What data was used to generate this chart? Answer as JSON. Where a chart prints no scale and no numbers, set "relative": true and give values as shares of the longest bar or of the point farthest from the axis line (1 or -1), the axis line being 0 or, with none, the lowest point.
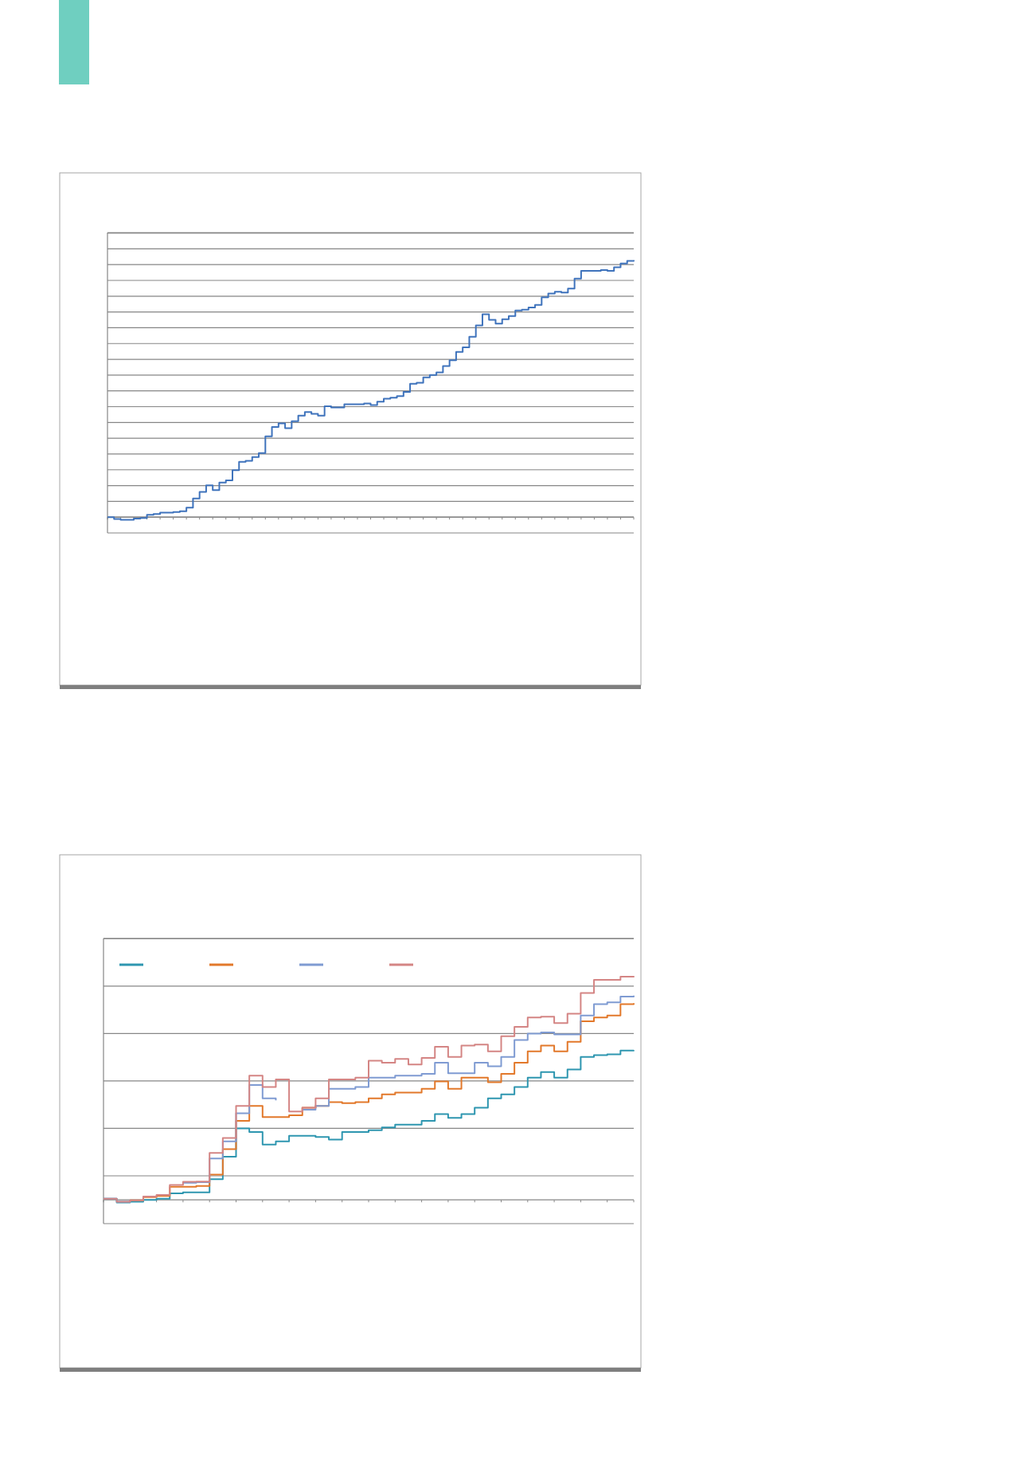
{
  "chart_data": [
    {
      "type": "step",
      "relative": true,
      "grid": true,
      "legend": false,
      "categories": [
        null,
        null,
        null,
        null,
        null,
        null,
        null,
        null,
        null,
        null,
        null,
        null,
        null,
        null,
        null,
        null,
        null,
        null,
        null,
        null,
        null,
        null,
        null,
        null,
        null,
        null,
        null,
        null,
        null,
        null,
        null,
        null,
        null,
        null,
        null,
        null,
        null,
        null,
        null,
        null,
        null,
        null,
        null,
        null,
        null,
        null,
        null,
        null,
        null,
        null,
        null,
        null,
        null,
        null,
        null,
        null,
        null,
        null,
        null,
        null,
        null,
        null,
        null,
        null,
        null,
        null,
        null,
        null,
        null,
        null,
        null,
        null,
        null,
        null,
        null,
        null,
        null,
        null,
        null,
        null,
        null
      ],
      "series": [
        {
          "color": "#3f73bc",
          "values": [
            0,
            -0.007,
            -0.01,
            -0.01,
            -0.006,
            -0.003,
            0.009,
            0.012,
            0.018,
            0.018,
            0.02,
            0.023,
            0.037,
            0.073,
            0.098,
            0.124,
            0.105,
            0.135,
            0.143,
            0.183,
            0.215,
            0.219,
            0.234,
            0.249,
            0.314,
            0.351,
            0.365,
            0.346,
            0.373,
            0.395,
            0.409,
            0.402,
            0.395,
            0.431,
            0.427,
            0.427,
            0.439,
            0.439,
            0.439,
            0.442,
            0.436,
            0.449,
            0.461,
            0.465,
            0.471,
            0.487,
            0.519,
            0.523,
            0.544,
            0.553,
            0.563,
            0.588,
            0.61,
            0.643,
            0.661,
            0.702,
            0.746,
            0.789,
            0.768,
            0.753,
            0.77,
            0.782,
            0.804,
            0.807,
            0.816,
            0.826,
            0.855,
            0.87,
            0.877,
            0.874,
            0.889,
            0.928,
            0.958,
            0.958,
            0.958,
            0.961,
            0.958,
            0.972,
            0.987,
            0.997,
            1
          ]
        }
      ]
    },
    {
      "type": "step",
      "relative": true,
      "grid": true,
      "categories": [
        null,
        null,
        null,
        null,
        null,
        null,
        null,
        null,
        null,
        null,
        null,
        null,
        null,
        null,
        null,
        null,
        null,
        null,
        null,
        null,
        null,
        null,
        null,
        null,
        null,
        null,
        null,
        null,
        null,
        null,
        null,
        null,
        null,
        null,
        null,
        null,
        null,
        null,
        null,
        null,
        null
      ],
      "series": [
        {
          "color": "#2e96b0",
          "values": [
            0.005,
            -0.012,
            -0.008,
            0,
            0.005,
            0.029,
            0.034,
            0.034,
            0.092,
            0.193,
            0.319,
            0.303,
            0.247,
            0.261,
            0.286,
            0.286,
            0.281,
            0.269,
            0.303,
            0.303,
            0.311,
            0.324,
            0.336,
            0.336,
            0.353,
            0.383,
            0.366,
            0.383,
            0.412,
            0.454,
            0.471,
            0.504,
            0.546,
            0.571,
            0.546,
            0.583,
            0.639,
            0.647,
            0.65,
            0.667,
            0.669
          ]
        },
        {
          "color": "#e2782a",
          "values": [
            null,
            null,
            -0.002,
            0.012,
            0.018,
            0.059,
            0.059,
            0.062,
            0.113,
            0.227,
            0.353,
            0.42,
            0.37,
            0.37,
            0.378,
            0.412,
            0.42,
            0.437,
            0.432,
            0.437,
            0.454,
            0.471,
            0.479,
            0.479,
            0.496,
            0.529,
            0.496,
            0.546,
            0.546,
            0.526,
            0.563,
            0.613,
            0.664,
            0.689,
            0.664,
            0.706,
            0.798,
            0.815,
            0.824,
            0.874,
            0.879
          ]
        },
        {
          "color": "#7f9bd2",
          "values": [
            0.005,
            -0.008,
            -0.002,
            null,
            null,
            null,
            0.076,
            0.079,
            0.185,
            0.261,
            0.387,
            0.513,
            0.454,
            0.445,
            null,
            0.403,
            0.42,
            0.496,
            0.496,
            0.504,
            0.546,
            0.546,
            0.555,
            0.555,
            0.563,
            0.613,
            0.566,
            0.566,
            0.613,
            0.597,
            0.639,
            0.714,
            0.743,
            0.748,
            0.739,
            0.739,
            0.824,
            0.874,
            0.882,
            0.908,
            0.913
          ]
        },
        {
          "color": "#d48584",
          "values": [
            0.005,
            -0.008,
            -0.002,
            0.015,
            0.022,
            0.067,
            0.081,
            0.082,
            0.21,
            0.277,
            0.42,
            0.555,
            0.504,
            0.538,
            0.395,
            0.412,
            0.454,
            0.538,
            0.538,
            0.546,
            0.622,
            0.613,
            0.63,
            0.605,
            0.634,
            0.684,
            0.639,
            0.689,
            0.694,
            0.664,
            0.731,
            0.773,
            0.815,
            0.818,
            0.79,
            0.832,
            0.924,
            0.983,
            0.983,
            0.997,
            1
          ]
        }
      ]
    }
  ]
}
